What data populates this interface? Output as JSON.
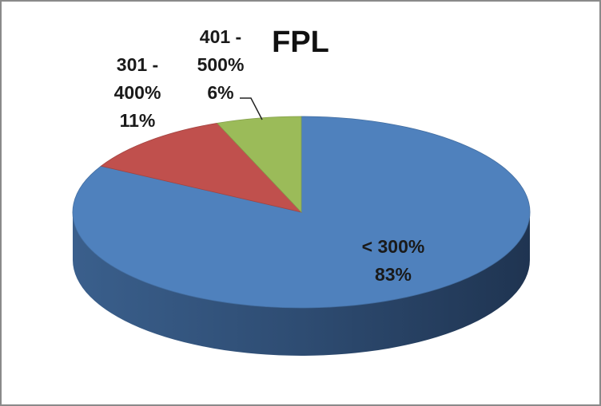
{
  "chart_data": {
    "type": "pie",
    "title": "FPL",
    "categories": [
      "< 300%",
      "301 - 400%",
      "401 - 500%"
    ],
    "values": [
      83,
      11,
      6
    ],
    "value_labels": [
      "83%",
      "11%",
      "6%"
    ],
    "colors": [
      "#4f81bd",
      "#c0504d",
      "#9bbb59"
    ]
  }
}
